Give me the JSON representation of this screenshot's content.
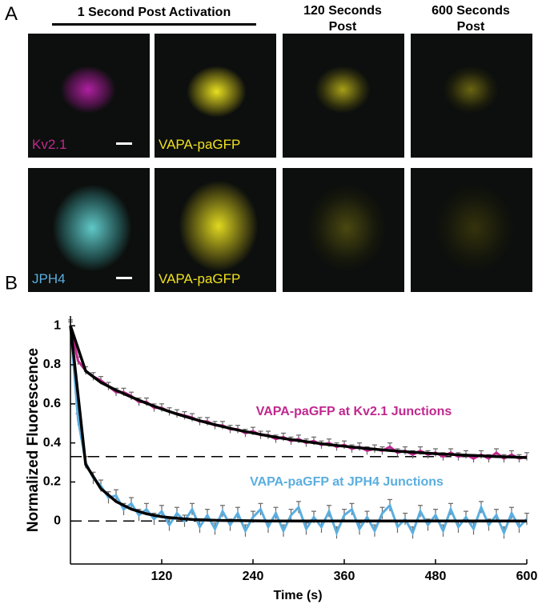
{
  "panel_a": {
    "label": "A",
    "headers": [
      "1 Second Post Activation",
      "120 Seconds Post",
      "600 Seconds Post"
    ],
    "rows": [
      {
        "labels": [
          "Kv2.1",
          "VAPA-paGFP"
        ]
      },
      {
        "labels": [
          "JPH4",
          "VAPA-paGFP"
        ]
      }
    ]
  },
  "panel_b_label": "B",
  "chart_data": {
    "type": "line",
    "xlabel": "Time (s)",
    "ylabel": "Normalized Fluorescence",
    "x": [
      0,
      10,
      20,
      30,
      40,
      50,
      60,
      70,
      80,
      90,
      100,
      110,
      120,
      130,
      140,
      150,
      160,
      170,
      180,
      190,
      200,
      210,
      220,
      230,
      240,
      250,
      260,
      270,
      280,
      290,
      300,
      310,
      320,
      330,
      340,
      350,
      360,
      370,
      380,
      390,
      400,
      410,
      420,
      430,
      440,
      450,
      460,
      470,
      480,
      490,
      500,
      510,
      520,
      530,
      540,
      550,
      560,
      570,
      580,
      590,
      600
    ],
    "xlim": [
      0,
      600
    ],
    "xticks": [
      120,
      240,
      360,
      480,
      600
    ],
    "ylim": [
      -0.22,
      1.05
    ],
    "yticks": [
      0,
      0.2,
      0.4,
      0.6,
      0.8,
      1
    ],
    "series": [
      {
        "name": "VAPA-paGFP at Kv2.1 Junctions",
        "color": "#c0288f",
        "error": 0.02,
        "values": [
          1.0,
          0.82,
          0.77,
          0.74,
          0.72,
          0.69,
          0.66,
          0.66,
          0.64,
          0.61,
          0.61,
          0.58,
          0.58,
          0.56,
          0.55,
          0.54,
          0.53,
          0.51,
          0.51,
          0.49,
          0.49,
          0.47,
          0.47,
          0.45,
          0.46,
          0.44,
          0.44,
          0.42,
          0.43,
          0.41,
          0.42,
          0.4,
          0.41,
          0.39,
          0.4,
          0.38,
          0.39,
          0.37,
          0.38,
          0.36,
          0.37,
          0.36,
          0.38,
          0.35,
          0.36,
          0.34,
          0.36,
          0.34,
          0.35,
          0.33,
          0.35,
          0.33,
          0.34,
          0.32,
          0.34,
          0.32,
          0.35,
          0.32,
          0.34,
          0.32,
          0.33
        ]
      },
      {
        "name": "VAPA-paGFP at JPH4 Junctions",
        "color": "#5aaee0",
        "error": 0.03,
        "values": [
          1.0,
          0.52,
          0.3,
          0.22,
          0.18,
          0.12,
          0.13,
          0.06,
          0.09,
          0.03,
          0.06,
          0.01,
          0.05,
          -0.02,
          0.04,
          0.0,
          0.06,
          -0.03,
          0.03,
          -0.04,
          0.05,
          -0.02,
          0.04,
          -0.05,
          0.02,
          0.06,
          -0.03,
          0.04,
          -0.05,
          0.03,
          0.07,
          -0.04,
          0.02,
          -0.03,
          0.05,
          -0.06,
          0.03,
          0.06,
          -0.04,
          0.02,
          -0.05,
          0.04,
          0.08,
          -0.03,
          0.01,
          -0.06,
          0.05,
          -0.02,
          0.03,
          -0.05,
          0.06,
          -0.03,
          0.02,
          -0.04,
          0.07,
          -0.02,
          0.03,
          -0.06,
          0.04,
          -0.03,
          0.01
        ]
      }
    ],
    "fits": {
      "x": [
        0,
        20,
        40,
        60,
        80,
        100,
        120,
        140,
        160,
        180,
        200,
        220,
        240,
        260,
        280,
        300,
        320,
        340,
        360,
        380,
        400,
        420,
        440,
        460,
        480,
        500,
        520,
        540,
        560,
        580,
        600
      ],
      "series": [
        {
          "color": "#000000",
          "values": [
            1.0,
            0.768,
            0.71,
            0.67,
            0.635,
            0.603,
            0.574,
            0.548,
            0.525,
            0.503,
            0.484,
            0.466,
            0.451,
            0.436,
            0.423,
            0.412,
            0.401,
            0.391,
            0.383,
            0.375,
            0.368,
            0.361,
            0.355,
            0.35,
            0.345,
            0.341,
            0.337,
            0.334,
            0.33,
            0.328,
            0.325
          ]
        },
        {
          "color": "#000000",
          "values": [
            1.0,
            0.29,
            0.166,
            0.1,
            0.061,
            0.037,
            0.022,
            0.014,
            0.008,
            0.005,
            0.003,
            0.002,
            0.001,
            0,
            0,
            0,
            0,
            0,
            0,
            0,
            0,
            0,
            0,
            0,
            0,
            0,
            0,
            0,
            0,
            0,
            0
          ]
        }
      ]
    },
    "reference_lines": [
      0.33,
      0
    ]
  }
}
